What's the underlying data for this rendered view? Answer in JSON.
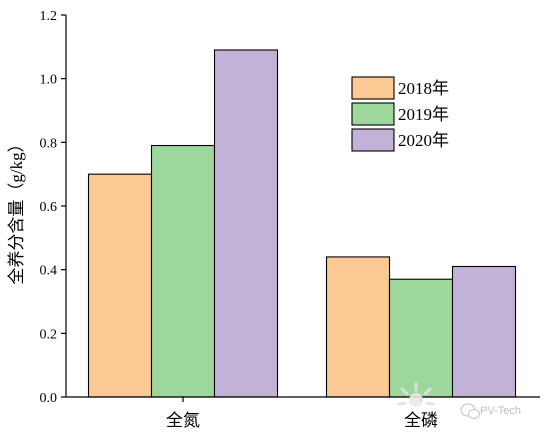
{
  "chart_data": {
    "type": "bar",
    "title": "",
    "xlabel": "",
    "ylabel": "全养分含量（g/kg）",
    "categories": [
      "全氮",
      "全磷"
    ],
    "series": [
      {
        "name": "2018年",
        "values": [
          0.7,
          0.44
        ],
        "color": "#fcc994"
      },
      {
        "name": "2019年",
        "values": [
          0.79,
          0.37
        ],
        "color": "#9ed79c"
      },
      {
        "name": "2020年",
        "values": [
          1.09,
          0.41
        ],
        "color": "#c2b2d8"
      }
    ],
    "ylim": [
      0,
      1.2
    ],
    "yticks": [
      "0.0",
      "0.2",
      "0.4",
      "0.6",
      "0.8",
      "1.0",
      "1.2"
    ],
    "grid": false,
    "legend_position": "top-right"
  },
  "watermark": {
    "text": "PV-Tech",
    "icon": "wechat-icon"
  }
}
